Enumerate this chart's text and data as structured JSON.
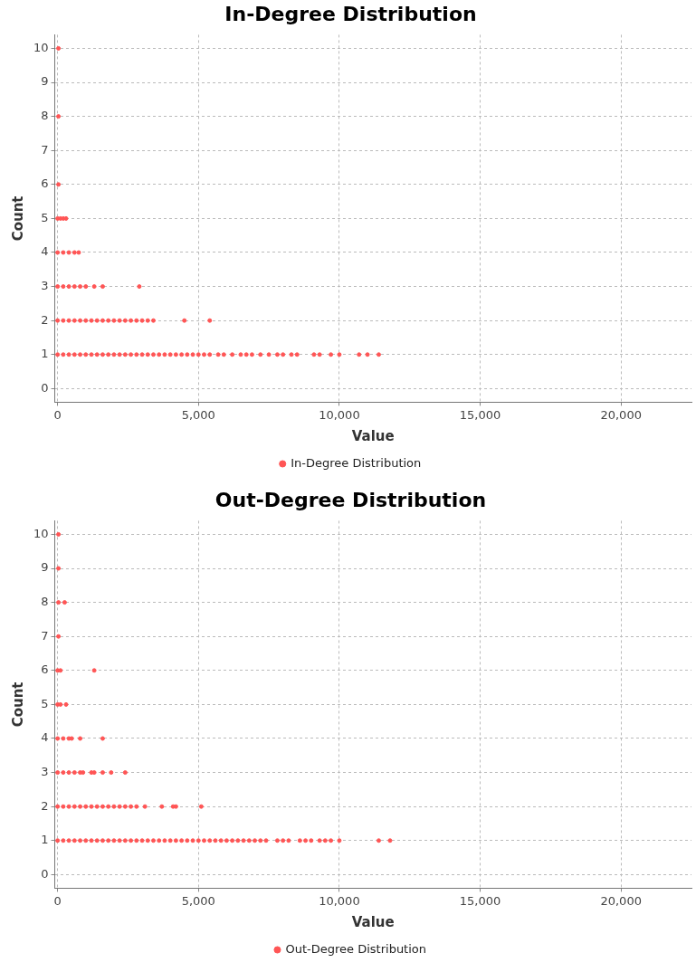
{
  "chart_data": [
    {
      "type": "scatter",
      "title": "In-Degree Distribution",
      "xlabel": "Value",
      "ylabel": "Count",
      "legend": "bottom",
      "grid": true,
      "marker": "circle",
      "xlim": [
        -100,
        22500
      ],
      "xticks": [
        0,
        {
          "value": 5000,
          "label": "5,000"
        },
        {
          "value": 10000,
          "label": "10,000"
        },
        {
          "value": 15000,
          "label": "15,000"
        },
        {
          "value": 20000,
          "label": "20,000"
        }
      ],
      "ylim": [
        -0.4,
        10.4
      ],
      "yticks": [
        0,
        1,
        2,
        3,
        4,
        5,
        6,
        7,
        8,
        9,
        10
      ],
      "series": [
        {
          "name": "In-Degree Distribution",
          "color": "#ff5555",
          "x": [
            0,
            200,
            400,
            600,
            800,
            1000,
            1200,
            1400,
            1600,
            1800,
            2000,
            2200,
            2400,
            2600,
            2800,
            3000,
            3200,
            3400,
            3600,
            3800,
            4000,
            4200,
            4400,
            4600,
            4800,
            5000,
            5200,
            5400,
            5700,
            5900,
            6200,
            6500,
            6700,
            6900,
            7200,
            7500,
            7800,
            8000,
            8300,
            8500,
            9100,
            9300,
            9700,
            10000,
            10700,
            11000,
            11400,
            0,
            200,
            400,
            600,
            800,
            1000,
            1200,
            1400,
            1600,
            1800,
            2000,
            2200,
            2400,
            2600,
            2800,
            3000,
            3200,
            3400,
            4500,
            5400,
            0,
            200,
            400,
            600,
            800,
            1000,
            1300,
            1600,
            2900,
            0,
            200,
            400,
            600,
            750,
            0,
            100,
            200,
            300,
            30,
            30,
            30
          ],
          "values": [
            1,
            1,
            1,
            1,
            1,
            1,
            1,
            1,
            1,
            1,
            1,
            1,
            1,
            1,
            1,
            1,
            1,
            1,
            1,
            1,
            1,
            1,
            1,
            1,
            1,
            1,
            1,
            1,
            1,
            1,
            1,
            1,
            1,
            1,
            1,
            1,
            1,
            1,
            1,
            1,
            1,
            1,
            1,
            1,
            1,
            1,
            1,
            2,
            2,
            2,
            2,
            2,
            2,
            2,
            2,
            2,
            2,
            2,
            2,
            2,
            2,
            2,
            2,
            2,
            2,
            2,
            2,
            3,
            3,
            3,
            3,
            3,
            3,
            3,
            3,
            3,
            4,
            4,
            4,
            4,
            4,
            5,
            5,
            5,
            5,
            6,
            8,
            10
          ]
        }
      ]
    },
    {
      "type": "scatter",
      "title": "Out-Degree Distribution",
      "xlabel": "Value",
      "ylabel": "Count",
      "legend": "bottom",
      "grid": true,
      "marker": "circle",
      "xlim": [
        -100,
        22500
      ],
      "xticks": [
        0,
        {
          "value": 5000,
          "label": "5,000"
        },
        {
          "value": 10000,
          "label": "10,000"
        },
        {
          "value": 15000,
          "label": "15,000"
        },
        {
          "value": 20000,
          "label": "20,000"
        }
      ],
      "ylim": [
        -0.4,
        10.4
      ],
      "yticks": [
        0,
        1,
        2,
        3,
        4,
        5,
        6,
        7,
        8,
        9,
        10
      ],
      "series": [
        {
          "name": "Out-Degree Distribution",
          "color": "#ff5555",
          "x": [
            0,
            200,
            400,
            600,
            800,
            1000,
            1200,
            1400,
            1600,
            1800,
            2000,
            2200,
            2400,
            2600,
            2800,
            3000,
            3200,
            3400,
            3600,
            3800,
            4000,
            4200,
            4400,
            4600,
            4800,
            5000,
            5200,
            5400,
            5600,
            5800,
            6000,
            6200,
            6400,
            6600,
            6800,
            7000,
            7200,
            7400,
            7800,
            8000,
            8200,
            8600,
            8800,
            9000,
            9300,
            9500,
            9700,
            10000,
            11400,
            11800,
            0,
            200,
            400,
            600,
            800,
            1000,
            1200,
            1400,
            1600,
            1800,
            2000,
            2200,
            2400,
            2600,
            2800,
            3100,
            3700,
            4100,
            4200,
            5100,
            0,
            200,
            400,
            600,
            800,
            900,
            1200,
            1300,
            1600,
            1900,
            2400,
            0,
            200,
            400,
            500,
            800,
            1600,
            0,
            100,
            300,
            0,
            100,
            1300,
            30,
            30,
            250,
            30,
            30
          ],
          "values": [
            1,
            1,
            1,
            1,
            1,
            1,
            1,
            1,
            1,
            1,
            1,
            1,
            1,
            1,
            1,
            1,
            1,
            1,
            1,
            1,
            1,
            1,
            1,
            1,
            1,
            1,
            1,
            1,
            1,
            1,
            1,
            1,
            1,
            1,
            1,
            1,
            1,
            1,
            1,
            1,
            1,
            1,
            1,
            1,
            1,
            1,
            1,
            1,
            1,
            1,
            2,
            2,
            2,
            2,
            2,
            2,
            2,
            2,
            2,
            2,
            2,
            2,
            2,
            2,
            2,
            2,
            2,
            2,
            2,
            2,
            3,
            3,
            3,
            3,
            3,
            3,
            3,
            3,
            3,
            3,
            3,
            4,
            4,
            4,
            4,
            4,
            4,
            5,
            5,
            5,
            6,
            6,
            6,
            7,
            8,
            8,
            9,
            10
          ]
        }
      ]
    }
  ]
}
